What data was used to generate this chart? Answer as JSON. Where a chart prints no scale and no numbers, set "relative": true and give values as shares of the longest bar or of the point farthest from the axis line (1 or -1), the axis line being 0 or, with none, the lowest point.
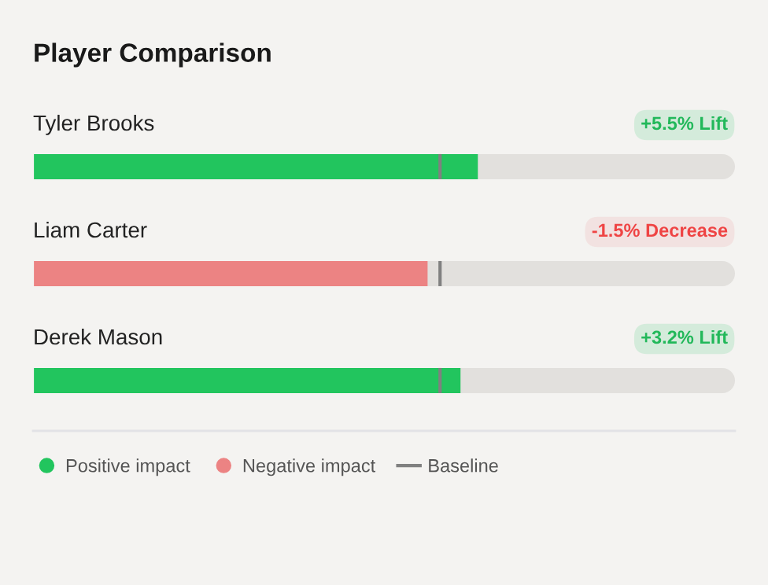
{
  "chart_data": {
    "type": "bar",
    "orientation": "horizontal",
    "relative": true,
    "title": "Player Comparison",
    "categories": [
      "Tyler Brooks",
      "Liam Carter",
      "Derek Mason"
    ],
    "series": [
      {
        "name": "Positive impact",
        "color": "#22c55e",
        "values": [
          1,
          null,
          0.961
        ]
      },
      {
        "name": "Negative impact",
        "color": "#ec8383",
        "values": [
          null,
          0.887,
          null
        ]
      }
    ],
    "ref_lines": [
      {
        "axis": "x",
        "value": 0.915,
        "label": "Baseline",
        "color": "#808080"
      }
    ],
    "annotations": [
      "+5.5% Lift",
      "-1.5% Decrease",
      "+3.2% Lift"
    ],
    "legend": "bottom"
  }
}
